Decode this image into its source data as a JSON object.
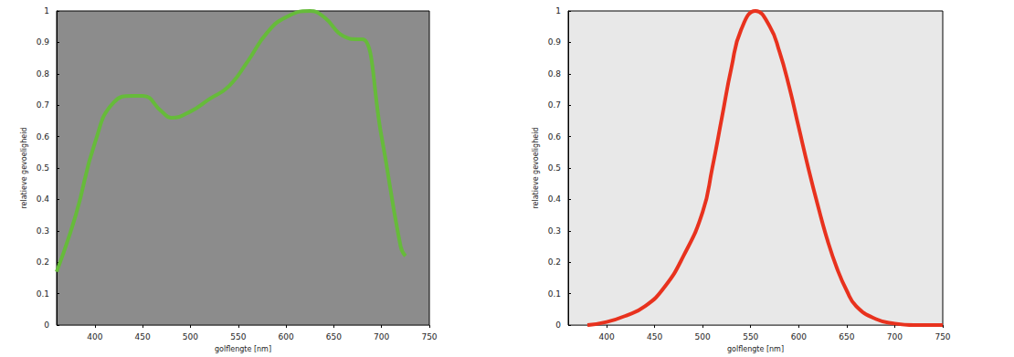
{
  "chart_data": [
    {
      "type": "line",
      "x_label": "golflengte [nm]",
      "y_label": "relatieve gevoeligheid",
      "color": "#66bb3a",
      "x": [
        360,
        380,
        400,
        420,
        440,
        450,
        470,
        480,
        500,
        520,
        540,
        560,
        580,
        600,
        625,
        640,
        660,
        675,
        680,
        700,
        720,
        725
      ],
      "values": [
        0.17,
        0.35,
        0.58,
        0.71,
        0.73,
        0.73,
        0.68,
        0.66,
        0.68,
        0.72,
        0.76,
        0.84,
        0.93,
        0.98,
        1.0,
        0.98,
        0.92,
        0.91,
        0.91,
        0.6,
        0.25,
        0.22
      ],
      "xlim": [
        360,
        750
      ],
      "xticks": [
        400,
        450,
        500,
        550,
        600,
        650,
        700,
        750
      ],
      "ylim": [
        0,
        1
      ],
      "yticks": [
        0,
        0.1,
        0.2,
        0.3,
        0.4,
        0.5,
        0.6,
        0.7,
        0.8,
        0.9,
        1
      ],
      "grid": false
    },
    {
      "type": "line",
      "x_label": "golflengte [nm]",
      "y_label": "relatieve gevoeligheid",
      "color": "#e8321e",
      "x": [
        380,
        400,
        420,
        440,
        460,
        480,
        500,
        510,
        520,
        530,
        540,
        555,
        570,
        580,
        590,
        600,
        610,
        620,
        630,
        640,
        650,
        660,
        680,
        700,
        720,
        750
      ],
      "values": [
        0,
        0.01,
        0.03,
        0.06,
        0.12,
        0.22,
        0.36,
        0.5,
        0.66,
        0.82,
        0.94,
        1.0,
        0.95,
        0.87,
        0.76,
        0.63,
        0.5,
        0.38,
        0.27,
        0.18,
        0.11,
        0.06,
        0.02,
        0.005,
        0,
        0
      ],
      "xlim": [
        360,
        750
      ],
      "xticks": [
        400,
        450,
        500,
        550,
        600,
        650,
        700,
        750
      ],
      "ylim": [
        0,
        1
      ],
      "yticks": [
        0,
        0.1,
        0.2,
        0.3,
        0.4,
        0.5,
        0.6,
        0.7,
        0.8,
        0.9,
        1
      ],
      "grid": false
    }
  ]
}
